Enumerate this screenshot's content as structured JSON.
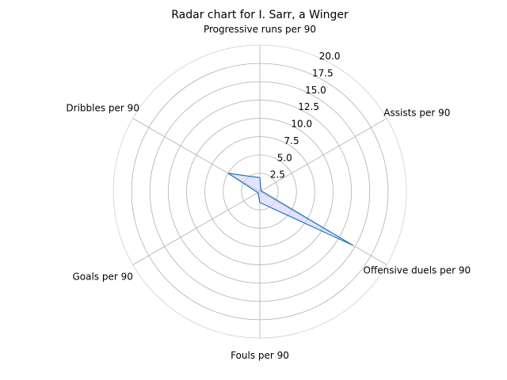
{
  "chart_data": {
    "type": "radar",
    "title": "Radar chart for I. Sarr, a Winger",
    "axes": [
      "Progressive runs per 90",
      "Assists per 90",
      "Offensive duels per 90",
      "Fouls per 90",
      "Goals per 90",
      "Dribbles per 90"
    ],
    "values": [
      1.9,
      0.2,
      14.7,
      1.5,
      0.3,
      5.0
    ],
    "rlim": [
      0,
      20
    ],
    "rticks": [
      2.5,
      5.0,
      7.5,
      10.0,
      12.5,
      15.0,
      17.5,
      20.0
    ],
    "rtick_labels": [
      "2.5",
      "5.0",
      "7.5",
      "10.0",
      "12.5",
      "15.0",
      "17.5",
      "20.0"
    ],
    "grid": true,
    "colors": {
      "line": "#1f77b4",
      "fill": "#ccccff",
      "grid": "#b0b0b0"
    }
  }
}
